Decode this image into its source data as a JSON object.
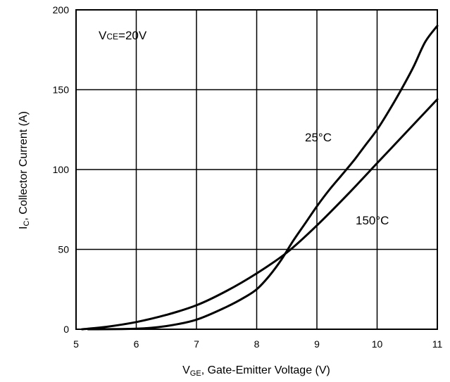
{
  "chart_data": {
    "type": "line",
    "title": "",
    "annotation": {
      "main": "V",
      "sub": "CE",
      "suffix": "=20V"
    },
    "xlabel": {
      "main": "V",
      "sub": "GE",
      "suffix": ", Gate-Emitter Voltage (V)"
    },
    "ylabel": {
      "main": "I",
      "sub": "C",
      "suffix": ", Collector Current (A)"
    },
    "xlim": [
      5,
      11
    ],
    "ylim": [
      0,
      200
    ],
    "x_ticks": [
      5,
      6,
      7,
      8,
      9,
      10,
      11
    ],
    "y_ticks": [
      0,
      50,
      100,
      150,
      200
    ],
    "grid": true,
    "line_color": "#000000",
    "series": [
      {
        "name": "25°C",
        "x": [
          5.2,
          6.0,
          6.5,
          7.0,
          7.5,
          7.8,
          8.0,
          8.2,
          8.4,
          8.6,
          8.8,
          9.0,
          9.2,
          9.4,
          9.6,
          9.8,
          10.0,
          10.2,
          10.4,
          10.6,
          10.8,
          11.0
        ],
        "values": [
          0,
          0.3,
          2,
          6,
          14,
          20,
          25,
          33,
          43,
          55,
          66,
          77,
          87,
          96,
          105,
          115,
          125,
          137,
          150,
          164,
          180,
          190
        ]
      },
      {
        "name": "150°C",
        "x": [
          5.1,
          5.5,
          6.0,
          6.5,
          7.0,
          7.5,
          8.0,
          8.5,
          9.0,
          9.5,
          10.0,
          10.5,
          11.0
        ],
        "values": [
          0,
          1.5,
          4.5,
          9,
          15,
          24,
          35,
          48,
          65,
          84,
          104,
          124,
          144
        ]
      }
    ]
  }
}
